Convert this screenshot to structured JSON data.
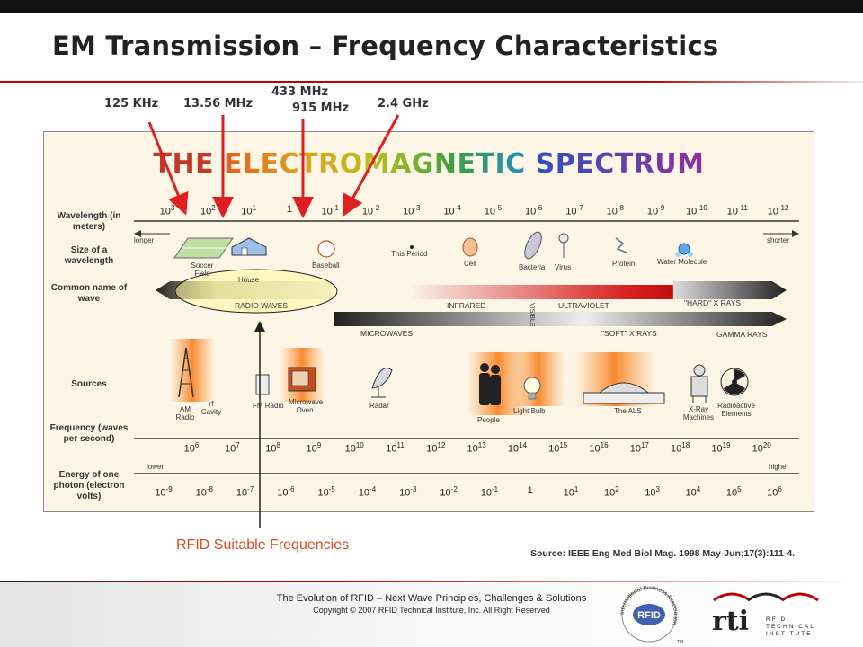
{
  "slide": {
    "title": "EM Transmission – Frequency Characteristics"
  },
  "frequencies": {
    "f1": "125 KHz",
    "f2": "13.56 MHz",
    "f3": "433 MHz",
    "f4": "915 MHz",
    "f5": "2.4 GHz"
  },
  "spectrum": {
    "title_word1": "THE",
    "title_word2": "ELECTROMAGNETIC",
    "title_word3": "SPECTRUM",
    "row_labels": {
      "wavelength": "Wavelength (in meters)",
      "size": "Size of a wavelength",
      "common": "Common name of wave",
      "sources": "Sources",
      "frequency": "Frequency (waves per second)",
      "energy": "Energy of one photon (electron volts)"
    },
    "wavelength_ticks": [
      {
        "base": "10",
        "exp": "3"
      },
      {
        "base": "10",
        "exp": "2"
      },
      {
        "base": "10",
        "exp": "1"
      },
      {
        "base": "1",
        "exp": ""
      },
      {
        "base": "10",
        "exp": "-1"
      },
      {
        "base": "10",
        "exp": "-2"
      },
      {
        "base": "10",
        "exp": "-3"
      },
      {
        "base": "10",
        "exp": "-4"
      },
      {
        "base": "10",
        "exp": "-5"
      },
      {
        "base": "10",
        "exp": "-6"
      },
      {
        "base": "10",
        "exp": "-7"
      },
      {
        "base": "10",
        "exp": "-8"
      },
      {
        "base": "10",
        "exp": "-9"
      },
      {
        "base": "10",
        "exp": "-10"
      },
      {
        "base": "10",
        "exp": "-11"
      },
      {
        "base": "10",
        "exp": "-12"
      }
    ],
    "frequency_ticks": [
      {
        "base": "10",
        "exp": "6"
      },
      {
        "base": "10",
        "exp": "7"
      },
      {
        "base": "10",
        "exp": "8"
      },
      {
        "base": "10",
        "exp": "9"
      },
      {
        "base": "10",
        "exp": "10"
      },
      {
        "base": "10",
        "exp": "11"
      },
      {
        "base": "10",
        "exp": "12"
      },
      {
        "base": "10",
        "exp": "13"
      },
      {
        "base": "10",
        "exp": "14"
      },
      {
        "base": "10",
        "exp": "15"
      },
      {
        "base": "10",
        "exp": "16"
      },
      {
        "base": "10",
        "exp": "17"
      },
      {
        "base": "10",
        "exp": "18"
      },
      {
        "base": "10",
        "exp": "19"
      },
      {
        "base": "10",
        "exp": "20"
      }
    ],
    "energy_ticks": [
      {
        "base": "10",
        "exp": "-9"
      },
      {
        "base": "10",
        "exp": "-8"
      },
      {
        "base": "10",
        "exp": "-7"
      },
      {
        "base": "10",
        "exp": "-6"
      },
      {
        "base": "10",
        "exp": "-5"
      },
      {
        "base": "10",
        "exp": "-4"
      },
      {
        "base": "10",
        "exp": "-3"
      },
      {
        "base": "10",
        "exp": "-2"
      },
      {
        "base": "10",
        "exp": "-1"
      },
      {
        "base": "1",
        "exp": ""
      },
      {
        "base": "10",
        "exp": "1"
      },
      {
        "base": "10",
        "exp": "2"
      },
      {
        "base": "10",
        "exp": "3"
      },
      {
        "base": "10",
        "exp": "4"
      },
      {
        "base": "10",
        "exp": "5"
      },
      {
        "base": "10",
        "exp": "6"
      }
    ],
    "longer": "longer",
    "shorter": "shorter",
    "lower": "lower",
    "higher": "higher",
    "sizes": {
      "soccer": "Soccer Field",
      "house": "House",
      "baseball": "Baseball",
      "period": "This Period",
      "cell": "Cell",
      "bacteria": "Bacteria",
      "virus": "Virus",
      "protein": "Protein",
      "water": "Water Molecule"
    },
    "bands": {
      "radio": "RADIO WAVES",
      "infrared": "INFRARED",
      "visible": "VISIBLE",
      "ultraviolet": "ULTRAVIOLET",
      "hard_xray": "\"HARD\" X RAYS",
      "microwaves": "MICROWAVES",
      "soft_xray": "\"SOFT\" X RAYS",
      "gamma": "GAMMA RAYS"
    },
    "sources": {
      "am": "AM Radio",
      "rf": "rf Cavity",
      "fm": "FM Radio",
      "microwave": "Microwave Oven",
      "radar": "Radar",
      "people": "People",
      "bulb": "Light Bulb",
      "als": "The ALS",
      "xray": "X-Ray Machines",
      "radioactive": "Radioactive Elements"
    }
  },
  "annotation": {
    "rfid": "RFID Suitable Frequencies"
  },
  "source": "Source: IEEE Eng Med Biol Mag. 1998 May-Jun;17(3):111-4.",
  "footer": {
    "line1": "The Evolution of RFID – Next Wave Principles, Challenges & Solutions",
    "line2": "Copyright © 2007 RFID Technical Institute, Inc. All Right Reserved"
  },
  "logos": {
    "iba_ring": "International Business Association",
    "iba_center": "RFID",
    "iba_tm": "TM",
    "rti": "rti",
    "rti_line1": "RFID",
    "rti_line2": "TECHNICAL",
    "rti_line3": "INSTITUTE"
  },
  "colors": {
    "title_rule": "#c00000",
    "arrow": "#e02020",
    "rfid_text": "#d84a1a",
    "radio_ellipse": "#fff7a0"
  }
}
